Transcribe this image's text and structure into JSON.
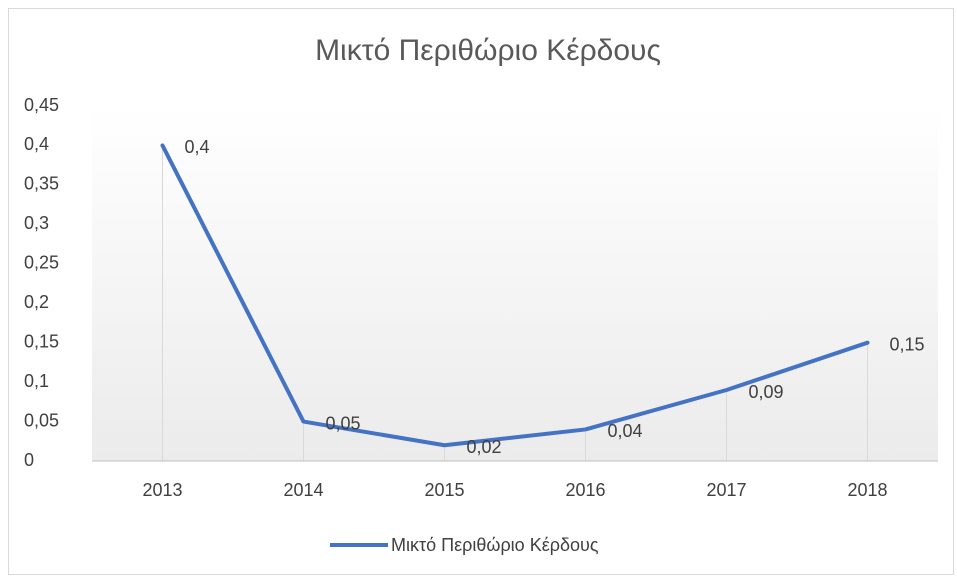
{
  "chart_data": {
    "type": "line",
    "title": "Μικτό Περιθώριο Κέρδους",
    "categories": [
      "2013",
      "2014",
      "2015",
      "2016",
      "2017",
      "2018"
    ],
    "series": [
      {
        "name": "Μικτό Περιθώριο Κέρδους",
        "color": "#4472c4",
        "values": [
          0.4,
          0.05,
          0.02,
          0.04,
          0.09,
          0.15
        ],
        "value_labels": [
          "0,4",
          "0,05",
          "0,02",
          "0,04",
          "0,09",
          "0,15"
        ]
      }
    ],
    "ylim": [
      0,
      0.45
    ],
    "yticks": [
      0,
      {
        "value": 0.05,
        "label": "0,05"
      },
      {
        "value": 0.1,
        "label": "0,1"
      },
      {
        "value": 0.15,
        "label": "0,15"
      },
      {
        "value": 0.2,
        "label": "0,2"
      },
      {
        "value": 0.25,
        "label": "0,25"
      },
      {
        "value": 0.3,
        "label": "0,3"
      },
      {
        "value": 0.35,
        "label": "0,35"
      },
      {
        "value": 0.4,
        "label": "0,4"
      },
      {
        "value": 0.45,
        "label": "0,45"
      }
    ],
    "legend": "bottom",
    "drop_lines": true
  }
}
